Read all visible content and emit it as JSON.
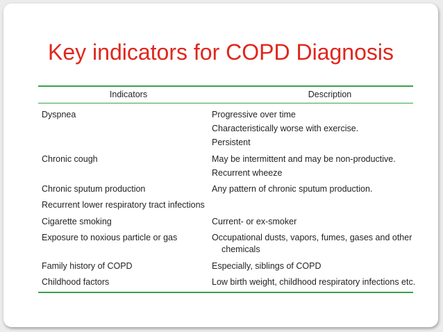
{
  "slide": {
    "title": "Key indicators for COPD Diagnosis"
  },
  "table": {
    "headers": {
      "indicators": "Indicators",
      "description": "Description"
    },
    "rows": [
      {
        "indicator": "Dyspnea",
        "description": [
          "Progressive over time",
          "Characteristically worse with exercise.",
          "Persistent"
        ]
      },
      {
        "indicator": "Chronic cough",
        "description": [
          "May be intermittent and may be non-productive.",
          "Recurrent wheeze"
        ]
      },
      {
        "indicator": "Chronic sputum production",
        "description": [
          "Any pattern of chronic sputum production."
        ]
      },
      {
        "indicator": "Recurrent lower respiratory tract infections",
        "description": []
      },
      {
        "indicator": "Cigarette smoking",
        "description": [
          "Current- or ex-smoker"
        ]
      },
      {
        "indicator": "Exposure to noxious particle or gas",
        "description": [
          "Occupational dusts, vapors, fumes, gases and other",
          "chemicals"
        ]
      },
      {
        "indicator": "Family history of COPD",
        "description": [
          "Especially, siblings of COPD"
        ]
      },
      {
        "indicator": "Childhood factors",
        "description": [
          "Low birth weight, childhood respiratory infections etc."
        ]
      }
    ]
  },
  "colors": {
    "title": "#e0261c",
    "rule": "#3aa14a",
    "text": "#231f20"
  }
}
